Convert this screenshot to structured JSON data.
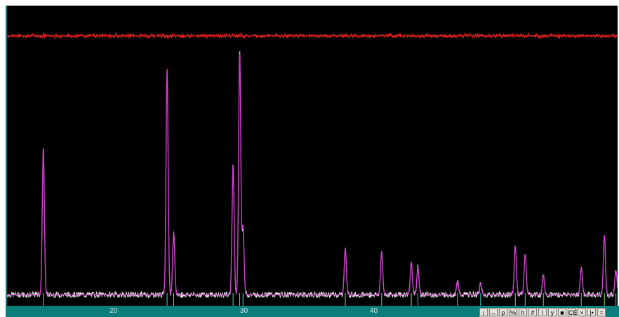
{
  "chart_data": {
    "type": "line",
    "title": "",
    "xlabel": "",
    "ylabel": "",
    "xlim": [
      13.5,
      50.5
    ],
    "ylim": [
      0,
      100
    ],
    "x_ticks": [
      "20",
      "30",
      "40"
    ],
    "grid": false,
    "peaks": [
      {
        "x": 15.7,
        "y": 54
      },
      {
        "x": 23.2,
        "y": 83
      },
      {
        "x": 23.6,
        "y": 23
      },
      {
        "x": 27.2,
        "y": 48
      },
      {
        "x": 27.6,
        "y": 90
      },
      {
        "x": 27.8,
        "y": 25
      },
      {
        "x": 34.0,
        "y": 17
      },
      {
        "x": 36.2,
        "y": 16
      },
      {
        "x": 38.0,
        "y": 12
      },
      {
        "x": 38.4,
        "y": 10
      },
      {
        "x": 40.8,
        "y": 5
      },
      {
        "x": 42.2,
        "y": 4
      },
      {
        "x": 44.3,
        "y": 18
      },
      {
        "x": 44.9,
        "y": 15
      },
      {
        "x": 46.0,
        "y": 7
      },
      {
        "x": 48.3,
        "y": 10
      },
      {
        "x": 49.7,
        "y": 22
      },
      {
        "x": 50.4,
        "y": 9
      }
    ],
    "series": [
      {
        "color": "#e8e8e8"
      },
      {
        "color": "#d040d0"
      },
      {
        "color": "#e02020"
      }
    ]
  },
  "toolbar": {
    "buttons": [
      "↕",
      "↔",
      "p",
      "%",
      "h",
      "#",
      "l",
      "y",
      "■",
      "CE",
      "×",
      "|•",
      "="
    ]
  },
  "colors": {
    "background": "#000000",
    "axis_bar": "#0b7d7b",
    "observed": "#e8e8e8",
    "calculated": "#d040d0",
    "difference": "#e02020",
    "tick_marks": "#7ee07e"
  }
}
